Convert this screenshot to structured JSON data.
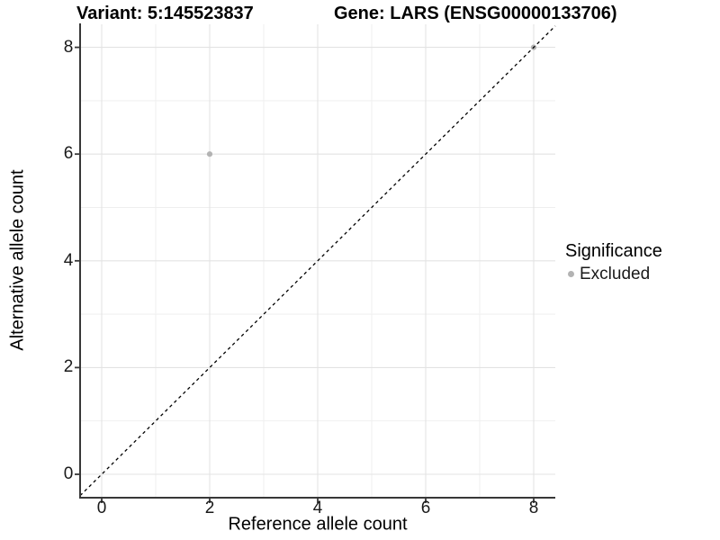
{
  "chart_data": {
    "type": "scatter",
    "title_left": "Variant: 5:145523837",
    "title_right": "Gene: LARS (ENSG00000133706)",
    "xlabel": "Reference allele count",
    "ylabel": "Alternative allele count",
    "xlim": [
      -0.4,
      8.4
    ],
    "ylim": [
      -0.44,
      8.42
    ],
    "x_ticks": [
      0,
      2,
      4,
      6,
      8
    ],
    "y_ticks": [
      0,
      2,
      4,
      6,
      8
    ],
    "x_minor_ticks": [
      1,
      3,
      5,
      7
    ],
    "y_minor_ticks": [
      1,
      3,
      5,
      7
    ],
    "grid": "on",
    "series": [
      {
        "name": "Excluded",
        "marker": "circle",
        "color": "#b3b3b3",
        "points": [
          {
            "x": 2,
            "y": 6
          },
          {
            "x": 8,
            "y": 8
          }
        ]
      }
    ],
    "reference_line": {
      "kind": "identity",
      "equation": "y = x",
      "style": "dashed",
      "color": "#000000"
    },
    "legend": {
      "title": "Significance",
      "position": "right",
      "entries": [
        {
          "label": "Excluded",
          "color": "#b3b3b3",
          "marker": "circle"
        }
      ]
    },
    "colors": {
      "background": "#ffffff",
      "grid_major": "#e3e3e3",
      "grid_minor": "#eeeeee",
      "axis_line": "#383838",
      "tick_mark": "#383838",
      "tick_text": "#1a1a1a",
      "point": "#b3b3b3"
    }
  }
}
